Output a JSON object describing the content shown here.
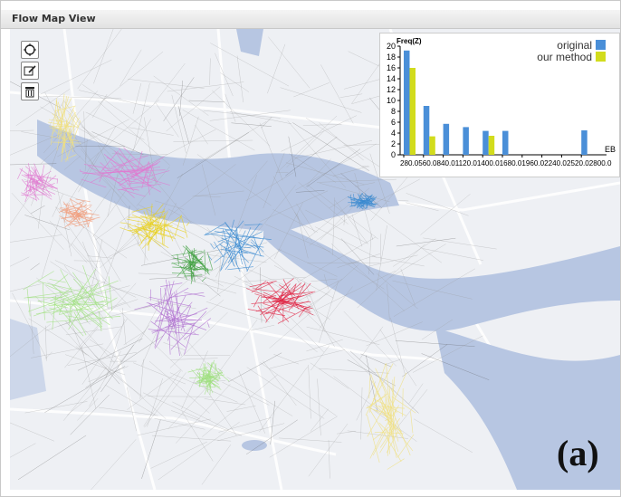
{
  "window": {
    "title": "Flow Map View"
  },
  "toolbar": {
    "tools": [
      "lasso-select-icon",
      "edit-icon",
      "trash-icon"
    ]
  },
  "figure_label": "(a)",
  "chart_data": {
    "type": "bar",
    "title": "",
    "ylabel": "Freq(Z)",
    "xlabel": "EB",
    "ylim": [
      0,
      20
    ],
    "yticks": [
      "0",
      "2",
      "4",
      "6",
      "8",
      "10",
      "12",
      "14",
      "16",
      "18",
      "20"
    ],
    "xtick_labels": [
      "280.0",
      "560.0",
      "840.0",
      "1120.0",
      "1400.0",
      "1680.0",
      "1960.0",
      "2240.0",
      "2520.0",
      "2800.0"
    ],
    "xtick_display": "280.0560.0840.01120.01400.01680.01960.02240.02520.02800.0",
    "legend": {
      "position": "top-right"
    },
    "series": [
      {
        "name": "original",
        "color": "#4a8fd8",
        "values": [
          19.2,
          9.0,
          5.7,
          5.1,
          4.4,
          4.4,
          0,
          0,
          0,
          4.5
        ]
      },
      {
        "name": "our method",
        "color": "#d2dc1c",
        "values": [
          16.0,
          3.4,
          0,
          0,
          3.5,
          0,
          0,
          0,
          0,
          0
        ]
      }
    ]
  },
  "colors": {
    "water": "#b7c6e2",
    "land": "#eef0f4",
    "road": "#ffffff",
    "clusters": [
      "#e07ad0",
      "#f0a080",
      "#e8d020",
      "#3a8ad0",
      "#40a040",
      "#b070d0",
      "#a0e080",
      "#e02040",
      "#f0e080",
      "#c060c0"
    ]
  }
}
